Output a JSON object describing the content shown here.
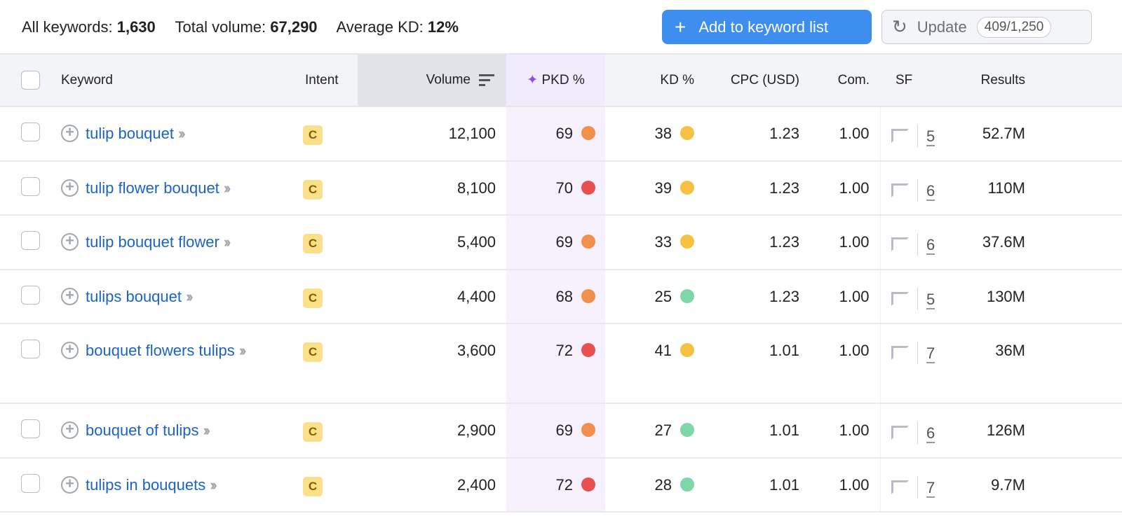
{
  "summary": {
    "all_label": "All keywords:",
    "all_value": "1,630",
    "volume_label": "Total volume:",
    "volume_value": "67,290",
    "kd_label": "Average KD:",
    "kd_value": "12%"
  },
  "toolbar": {
    "add_label": "Add to keyword list",
    "update_label": "Update",
    "update_count": "409/1,250"
  },
  "columns": {
    "keyword": "Keyword",
    "intent": "Intent",
    "volume": "Volume",
    "pkd": "PKD %",
    "kd": "KD %",
    "cpc": "CPC (USD)",
    "com": "Com.",
    "sf": "SF",
    "results": "Results"
  },
  "colors": {
    "orange": "#f0904c",
    "red": "#e8504f",
    "yellow": "#f5c242",
    "green": "#7fd6a6",
    "link": "#1b63c6"
  },
  "rows": [
    {
      "keyword": "tulip bouquet",
      "intent": "C",
      "volume": "12,100",
      "pkd": "69",
      "pkd_color": "orange",
      "kd": "38",
      "kd_color": "yellow",
      "cpc": "1.23",
      "com": "1.00",
      "sf": "5",
      "results": "52.7M"
    },
    {
      "keyword": "tulip flower bouquet",
      "intent": "C",
      "volume": "8,100",
      "pkd": "70",
      "pkd_color": "red",
      "kd": "39",
      "kd_color": "yellow",
      "cpc": "1.23",
      "com": "1.00",
      "sf": "6",
      "results": "110M"
    },
    {
      "keyword": "tulip bouquet flower",
      "intent": "C",
      "volume": "5,400",
      "pkd": "69",
      "pkd_color": "orange",
      "kd": "33",
      "kd_color": "yellow",
      "cpc": "1.23",
      "com": "1.00",
      "sf": "6",
      "results": "37.6M"
    },
    {
      "keyword": "tulips bouquet",
      "intent": "C",
      "volume": "4,400",
      "pkd": "68",
      "pkd_color": "orange",
      "kd": "25",
      "kd_color": "green",
      "cpc": "1.23",
      "com": "1.00",
      "sf": "5",
      "results": "130M"
    },
    {
      "keyword": "bouquet flowers tulips",
      "intent": "C",
      "volume": "3,600",
      "pkd": "72",
      "pkd_color": "red",
      "kd": "41",
      "kd_color": "yellow",
      "cpc": "1.01",
      "com": "1.00",
      "sf": "7",
      "results": "36M"
    },
    {
      "keyword": "bouquet of tulips",
      "intent": "C",
      "volume": "2,900",
      "pkd": "69",
      "pkd_color": "orange",
      "kd": "27",
      "kd_color": "green",
      "cpc": "1.01",
      "com": "1.00",
      "sf": "6",
      "results": "126M"
    },
    {
      "keyword": "tulips in bouquets",
      "intent": "C",
      "volume": "2,400",
      "pkd": "72",
      "pkd_color": "red",
      "kd": "28",
      "kd_color": "green",
      "cpc": "1.01",
      "com": "1.00",
      "sf": "7",
      "results": "9.7M"
    }
  ]
}
